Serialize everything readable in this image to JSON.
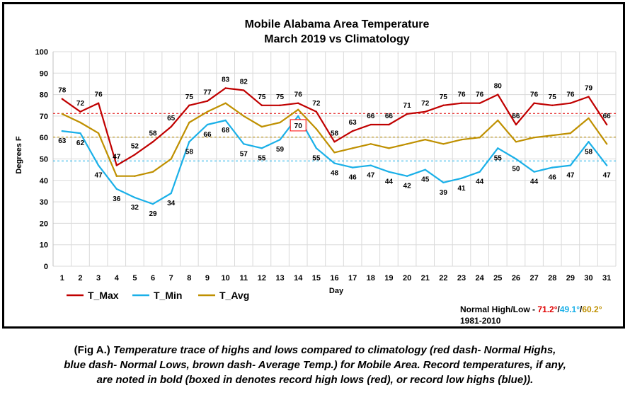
{
  "chart_data": {
    "type": "line",
    "title": "Mobile Alabama Area Temperature",
    "subtitle": "March 2019 vs Climatology",
    "xlabel": "Day",
    "ylabel": "Degrees F",
    "ylim": [
      0,
      100
    ],
    "yticks": [
      0,
      10,
      20,
      30,
      40,
      50,
      60,
      70,
      80,
      90,
      100
    ],
    "grid": true,
    "legend_position": "bottom-left",
    "x": [
      1,
      2,
      3,
      4,
      5,
      6,
      7,
      8,
      9,
      10,
      11,
      12,
      13,
      14,
      15,
      16,
      17,
      18,
      19,
      20,
      21,
      22,
      23,
      24,
      25,
      26,
      27,
      28,
      29,
      30,
      31
    ],
    "series": [
      {
        "name": "T_Max",
        "color": "#c00000",
        "values": [
          78,
          72,
          76,
          47,
          52,
          58,
          65,
          75,
          77,
          83,
          82,
          75,
          75,
          76,
          72,
          58,
          63,
          66,
          66,
          71,
          72,
          75,
          76,
          76,
          80,
          66,
          76,
          75,
          76,
          79,
          66
        ]
      },
      {
        "name": "T_Min",
        "color": "#1ab0e8",
        "values": [
          63,
          62,
          47,
          36,
          32,
          29,
          34,
          58,
          66,
          68,
          57,
          55,
          59,
          70,
          55,
          48,
          46,
          47,
          44,
          42,
          45,
          39,
          41,
          44,
          55,
          50,
          44,
          46,
          47,
          58,
          47
        ]
      },
      {
        "name": "T_Avg",
        "color": "#bf9000",
        "values": [
          71,
          67,
          62,
          42,
          42,
          44,
          50,
          67,
          72,
          76,
          70,
          65,
          67,
          73,
          64,
          53,
          55,
          57,
          55,
          57,
          59,
          57,
          59,
          60,
          68,
          58,
          60,
          61,
          62,
          69,
          57
        ]
      }
    ],
    "reference_lines": [
      {
        "name": "Normal High",
        "value": 71.2,
        "color": "#e00000"
      },
      {
        "name": "Normal Low",
        "value": 49.1,
        "color": "#1ab0e8"
      },
      {
        "name": "Average Temp",
        "value": 60.2,
        "color": "#bf9000"
      }
    ],
    "records": [
      {
        "series": "T_Max",
        "day": 10,
        "value": 83,
        "label_color": "#ff0000",
        "boxed": false
      },
      {
        "series": "T_Min",
        "day": 14,
        "value": 70,
        "label_color": "#1f1fd0",
        "boxed": true,
        "box_color": "#ff0000"
      }
    ],
    "normals_text": {
      "prefix": "Normal High/Low - ",
      "high": "71.2°",
      "sep1": "/",
      "low": "49.1°",
      "sep2": "/",
      "avg": "60.2°",
      "period": "1981-2010"
    },
    "plot_background": "#ffffff",
    "grid_color": "#d9d9d9"
  },
  "caption": {
    "lead": "(Fig A.)",
    "text": " Temperature trace of highs and lows compared to climatology (red dash- Normal Highs, blue dash- Normal Lows, brown dash- Average Temp.) for Mobile Area. Record temperatures, if any, are noted in bold (boxed in denotes record high lows (red), or record low highs (blue))."
  }
}
